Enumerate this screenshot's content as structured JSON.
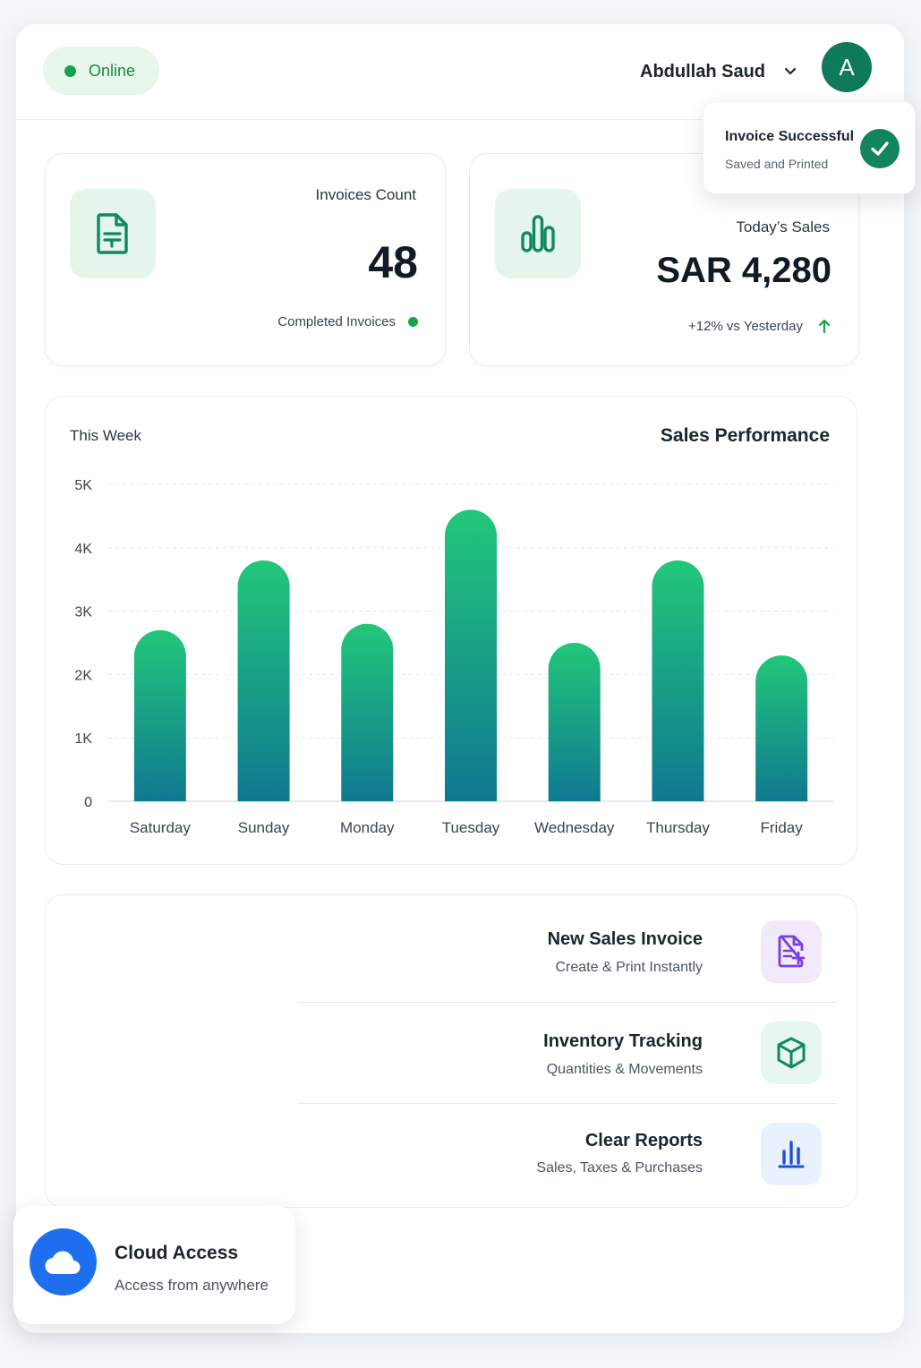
{
  "header": {
    "status": "Online",
    "user_name": "Abdullah Saud",
    "avatar_initial": "A"
  },
  "toast": {
    "title": "Invoice Successful",
    "subtitle": "Saved and Printed"
  },
  "stats": {
    "invoices": {
      "label": "Invoices Count",
      "value": "48",
      "footer": "Completed Invoices"
    },
    "sales": {
      "label": "Today’s Sales",
      "value": "SAR 4,280",
      "footer": "+12% vs Yesterday"
    }
  },
  "chart_data": {
    "type": "bar",
    "title": "Sales Performance",
    "subtitle": "This Week",
    "categories": [
      "Saturday",
      "Sunday",
      "Monday",
      "Tuesday",
      "Wednesday",
      "Thursday",
      "Friday"
    ],
    "values": [
      2700,
      3800,
      2800,
      4600,
      2500,
      3800,
      2300
    ],
    "ylim": [
      0,
      5000
    ],
    "yticks": [
      0,
      1000,
      2000,
      3000,
      4000,
      5000
    ],
    "ytick_labels": [
      "0",
      "1K",
      "2K",
      "3K",
      "4K",
      "5K"
    ],
    "grid": true,
    "colors": {
      "bar_top": "#22c77a",
      "bar_bottom": "#0f7891"
    }
  },
  "actions": [
    {
      "title": "New Sales Invoice",
      "subtitle": "Create & Print Instantly",
      "icon": "invoice-add-icon",
      "color": "#7a3ee0",
      "bg": "#f1eafc"
    },
    {
      "title": "Inventory Tracking",
      "subtitle": "Quantities & Movements",
      "icon": "box-icon",
      "color": "#0f8a5c",
      "bg": "#e7f6ee"
    },
    {
      "title": "Clear Reports",
      "subtitle": "Sales, Taxes & Purchases",
      "icon": "bar-chart-icon",
      "color": "#1d4fd8",
      "bg": "#e9f1fd"
    }
  ],
  "cloud": {
    "title": "Cloud Access",
    "subtitle": "Access from anywhere"
  },
  "colors": {
    "brand_green": "#0f7a5a",
    "status_green": "#16a34a",
    "cloud_blue": "#1e6ff0"
  }
}
